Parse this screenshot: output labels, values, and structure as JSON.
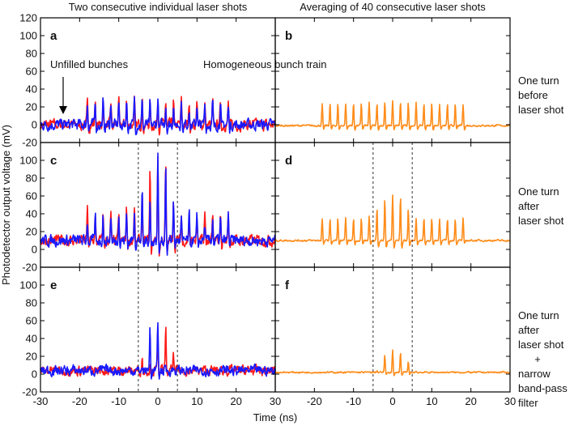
{
  "chart_data": {
    "type": "line",
    "column_titles": [
      "Two consecutive individual laser shots",
      "Averaging of 40 consecutive laser shots"
    ],
    "xlabel": "Time (ns)",
    "ylabel": "Photodetector output voltage (mV)",
    "xlim": [
      -30,
      30
    ],
    "ylim": [
      -20,
      120
    ],
    "xticks": [
      -30,
      -20,
      -10,
      0,
      10,
      20,
      30
    ],
    "yticks": [
      -20,
      0,
      20,
      40,
      60,
      80,
      100,
      120
    ],
    "bunch_times_ns": [
      -18,
      -16,
      -14,
      -12,
      -10,
      -8,
      -6,
      -4,
      -2,
      0,
      2,
      4,
      6,
      8,
      10,
      12,
      14,
      16,
      18
    ],
    "dashed_lines_ns": [
      -5,
      5
    ],
    "colors": {
      "shot1": "#ff1a1a",
      "shot2": "#1a1aff",
      "average": "#ff8c1a",
      "dashed": "#333333"
    },
    "row_labels": [
      [
        "One turn",
        "before",
        "laser shot"
      ],
      [
        "One turn",
        "after",
        "laser shot"
      ],
      [
        "One turn",
        "after",
        "laser shot",
        "+",
        "narrow",
        "band-pass",
        "filter"
      ]
    ],
    "annotations": {
      "unfilled": "Unfilled bunches",
      "homogeneous": "Homogeneous bunch train"
    },
    "panels": [
      {
        "id": "a",
        "row": 0,
        "col": 0,
        "dashed": false,
        "baseline": 0,
        "noise": 5,
        "series": [
          {
            "color_key": "shot1",
            "peaks": [
              24,
              29,
              27,
              25,
              27,
              28,
              29,
              28,
              24,
              30,
              26,
              27,
              27,
              29,
              30,
              26,
              26,
              25,
              24
            ]
          },
          {
            "color_key": "shot2",
            "peaks": [
              25,
              26,
              27,
              25,
              27,
              28,
              30,
              28,
              23,
              31,
              24,
              25,
              26,
              22,
              25,
              23,
              25,
              25,
              20
            ]
          }
        ]
      },
      {
        "id": "b",
        "row": 0,
        "col": 1,
        "dashed": false,
        "baseline": -1,
        "noise": 0.8,
        "series": [
          {
            "color_key": "average",
            "peaks": [
              23,
              24,
              24,
              24,
              24,
              25,
              25,
              25,
              26,
              27,
              26,
              25,
              25,
              24,
              24,
              24,
              24,
              23,
              23
            ]
          }
        ]
      },
      {
        "id": "c",
        "row": 1,
        "col": 0,
        "dashed": true,
        "baseline": 10,
        "noise": 5,
        "series": [
          {
            "color_key": "shot1",
            "peaks": [
              45,
              37,
              39,
              39,
              42,
              46,
              46,
              65,
              87,
              105,
              98,
              60,
              39,
              39,
              35,
              41,
              35,
              39,
              39
            ]
          },
          {
            "color_key": "shot2",
            "peaks": [
              32,
              37,
              39,
              38,
              42,
              41,
              44,
              65,
              57,
              105,
              98,
              60,
              36,
              39,
              35,
              28,
              35,
              35,
              39
            ]
          }
        ]
      },
      {
        "id": "d",
        "row": 1,
        "col": 1,
        "dashed": true,
        "baseline": 10,
        "noise": 0.8,
        "series": [
          {
            "color_key": "average",
            "peaks": [
              35,
              35,
              35,
              35,
              35,
              35,
              37,
              46,
              57,
              62,
              60,
              46,
              36,
              35,
              35,
              35,
              35,
              35,
              35
            ]
          }
        ]
      },
      {
        "id": "e",
        "row": 2,
        "col": 0,
        "dashed": true,
        "baseline": 4,
        "noise": 4.5,
        "series": [
          {
            "color_key": "shot1",
            "peaks": [
              4,
              4,
              4,
              4,
              4,
              4,
              4,
              19,
              10,
              40,
              57,
              25,
              4,
              4,
              4,
              4,
              4,
              4,
              4
            ]
          },
          {
            "color_key": "shot2",
            "peaks": [
              4,
              4,
              4,
              4,
              4,
              4,
              4,
              6,
              55,
              59,
              10,
              6,
              4,
              4,
              4,
              4,
              4,
              4,
              4
            ]
          }
        ]
      },
      {
        "id": "f",
        "row": 2,
        "col": 1,
        "dashed": true,
        "baseline": 2,
        "noise": 0.7,
        "series": [
          {
            "color_key": "average",
            "peaks": [
              2,
              2,
              2,
              2,
              2,
              2,
              2,
              4,
              22,
              27,
              25,
              14,
              3,
              2,
              2,
              2,
              2,
              2,
              2
            ]
          }
        ]
      }
    ]
  }
}
